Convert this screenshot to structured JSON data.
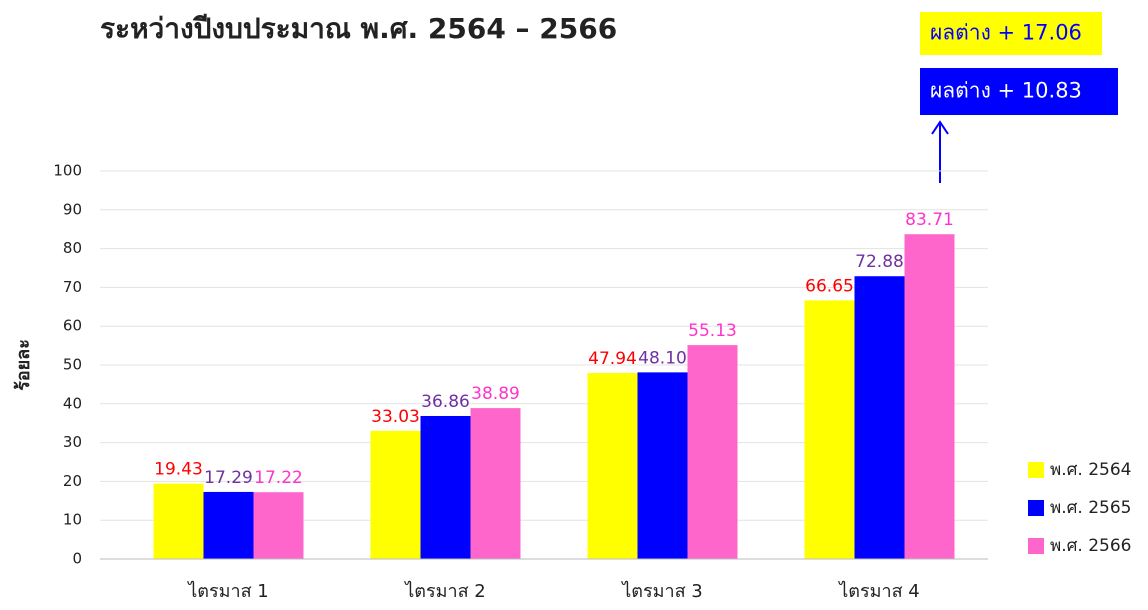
{
  "chart_data": {
    "type": "bar",
    "title": "ระหว่างปีงบประมาณ พ.ศ. 2564 – 2566",
    "y_label": "ร้อยละ",
    "categories": [
      "ไตรมาส 1",
      "ไตรมาส 2",
      "ไตรมาส 3",
      "ไตรมาส 4"
    ],
    "series": [
      {
        "name": "พ.ศ. 2564",
        "color": "#ffff00",
        "label_color": "#ff0000",
        "values": [
          19.43,
          33.03,
          47.94,
          66.65
        ],
        "value_labels": [
          "19.43",
          "33.03",
          "47.94",
          "66.65"
        ]
      },
      {
        "name": "พ.ศ. 2565",
        "color": "#0000ff",
        "label_color": "#7030a0",
        "values": [
          17.29,
          36.86,
          48.1,
          72.88
        ],
        "value_labels": [
          "17.29",
          "36.86",
          "48.10",
          "72.88"
        ]
      },
      {
        "name": "พ.ศ. 2566",
        "color": "#ff66cc",
        "label_color": "#ff33cc",
        "values": [
          17.22,
          38.89,
          55.13,
          83.71
        ],
        "value_labels": [
          "17.22",
          "38.89",
          "55.13",
          "83.71"
        ]
      }
    ],
    "ylim": [
      0,
      100
    ],
    "yticks": [
      0,
      10,
      20,
      30,
      40,
      50,
      60,
      70,
      80,
      90,
      100
    ],
    "grid": true,
    "legend": "right",
    "annotations": [
      {
        "text": "ผลต่าง + 17.06",
        "background": "#ffff00",
        "color": "#0000ff"
      },
      {
        "text": "ผลต่าง + 10.83",
        "background": "#0000ff",
        "color": "#ffffff"
      }
    ]
  }
}
